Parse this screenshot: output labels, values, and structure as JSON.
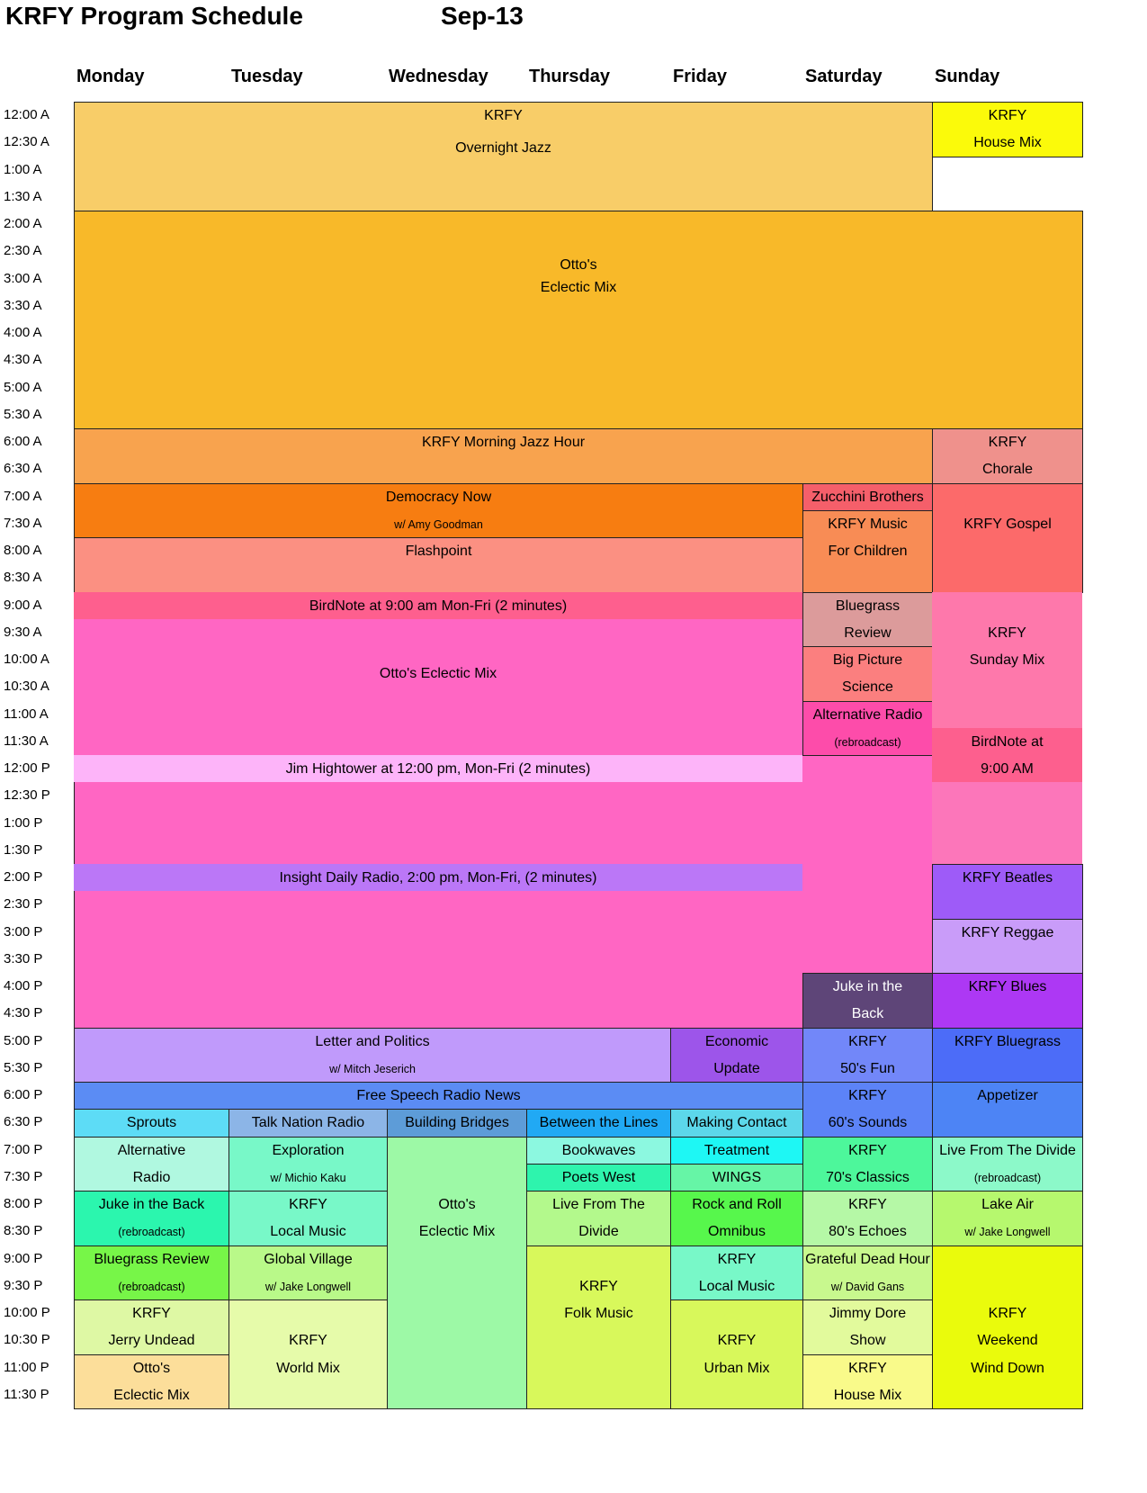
{
  "header": {
    "title": "KRFY Program Schedule",
    "month": "Sep-13"
  },
  "days": [
    "Monday",
    "Tuesday",
    "Wednesday",
    "Thursday",
    "Friday",
    "Saturday",
    "Sunday"
  ],
  "times": [
    "12:00 A",
    "12:30 A",
    "1:00 A",
    "1:30 A",
    "2:00 A",
    "2:30 A",
    "3:00 A",
    "3:30 A",
    "4:00 A",
    "4:30 A",
    "5:00 A",
    "5:30 A",
    "6:00 A",
    "6:30 A",
    "7:00 A",
    "7:30 A",
    "8:00 A",
    "8:30 A",
    "9:00 A",
    "9:30 A",
    "10:00 A",
    "10:30 A",
    "11:00 A",
    "11:30 A",
    "12:00 P",
    "12:30 P",
    "1:00 P",
    "1:30 P",
    "2:00 P",
    "2:30 P",
    "3:00 P",
    "3:30 P",
    "4:00 P",
    "4:30 P",
    "5:00 P",
    "5:30 P",
    "6:00 P",
    "6:30 P",
    "7:00 P",
    "7:30 P",
    "8:00 P",
    "8:30 P",
    "9:00 P",
    "9:30 P",
    "10:00 P",
    "10:30 P",
    "11:00 P",
    "11:30 P"
  ],
  "programs": [
    {
      "lines": [
        [
          "KRFY",
          0
        ],
        [
          "Overnight Jazz",
          1.2
        ]
      ],
      "color": "#f8cd68"
    },
    {
      "lines": [
        [
          "Otto's",
          1.5
        ],
        [
          "Eclectic Mix",
          2.3
        ]
      ],
      "color": "#f8b929"
    },
    {
      "lines": [
        [
          "KRFY Morning Jazz Hour",
          0
        ]
      ],
      "color": "#f8a34e"
    },
    {
      "lines": [
        [
          "Democracy Now",
          0
        ],
        [
          "w/ Amy Goodman",
          1,
          "sm"
        ]
      ],
      "color": "#f77d11"
    },
    {
      "lines": [
        [
          "Flashpoint",
          0
        ]
      ],
      "color": "#fb9082"
    },
    {
      "lines": [
        [
          "Otto's Eclectic Mix",
          1.5
        ]
      ],
      "color": "#ff66c3"
    },
    {
      "lines": [
        [
          "BirdNote at 9:00 am Mon-Fri (2 minutes)",
          0
        ]
      ],
      "color": "#fe5f8e"
    },
    {
      "lines": [
        [
          "Jim Hightower at 12:00 pm, Mon-Fri (2 minutes)",
          0
        ]
      ],
      "color": "#fdb4f9"
    },
    {
      "lines": [
        [
          "Insight Daily Radio, 2:00 pm, Mon-Fri, (2 minutes)",
          0
        ]
      ],
      "color": "#bb77f7"
    },
    {
      "lines": [
        [
          "Letter and Politics",
          0
        ],
        [
          "w/ Mitch Jeserich",
          1,
          "sm"
        ]
      ],
      "color": "#c09afb"
    },
    {
      "lines": [
        [
          "Economic",
          0
        ],
        [
          "Update",
          1
        ]
      ],
      "color": "#9d55ea"
    },
    {
      "lines": [
        [
          "Free Speech Radio News",
          0
        ]
      ],
      "color": "#5b8cf4"
    },
    {
      "lines": [
        [
          "Sprouts",
          0
        ]
      ],
      "color": "#5ddcf6"
    },
    {
      "lines": [
        [
          "Talk Nation Radio",
          0
        ]
      ],
      "color": "#8cb5e7"
    },
    {
      "lines": [
        [
          "Building Bridges",
          0
        ]
      ],
      "color": "#5d9cd8"
    },
    {
      "lines": [
        [
          "Between the Lines",
          0
        ]
      ],
      "color": "#21a9f4"
    },
    {
      "lines": [
        [
          "Making Contact",
          0
        ]
      ],
      "color": "#5cd7ea"
    },
    {
      "lines": [
        [
          "Alternative",
          0
        ],
        [
          "Radio",
          1
        ]
      ],
      "color": "#b0f8e0"
    },
    {
      "lines": [
        [
          "Exploration",
          0
        ],
        [
          "w/ Michio Kaku",
          1,
          "sm"
        ]
      ],
      "color": "#78f8c8"
    },
    {
      "lines": [
        [
          "Otto's",
          2
        ],
        [
          "Eclectic Mix",
          3
        ]
      ],
      "color": "#9df9a6"
    },
    {
      "lines": [
        [
          "Bookwaves",
          0
        ]
      ],
      "color": "#8cf8e0"
    },
    {
      "lines": [
        [
          "Treatment",
          0
        ]
      ],
      "color": "#1ef7f4"
    },
    {
      "lines": [
        [
          "Poets West",
          0
        ]
      ],
      "color": "#2ef4ad"
    },
    {
      "lines": [
        [
          "WINGS",
          0
        ]
      ],
      "color": "#66f5a6"
    },
    {
      "lines": [
        [
          "Juke in the Back",
          0
        ],
        [
          "(rebroadcast)",
          1,
          "sm"
        ]
      ],
      "color": "#2bf6ae"
    },
    {
      "lines": [
        [
          "KRFY",
          0
        ],
        [
          "Local Music",
          1
        ]
      ],
      "color": "#78f8c8"
    },
    {
      "lines": [
        [
          "Live From The",
          0
        ],
        [
          "Divide",
          1
        ]
      ],
      "color": "#b3f98c"
    },
    {
      "lines": [
        [
          "Rock and Roll",
          0
        ],
        [
          "Omnibus",
          1
        ]
      ],
      "color": "#57f74c"
    },
    {
      "lines": [
        [
          "Bluegrass Review",
          0
        ],
        [
          "(rebroadcast)",
          1,
          "sm"
        ]
      ],
      "color": "#77f648"
    },
    {
      "lines": [
        [
          "Global Village",
          0
        ],
        [
          "w/ Jake Longwell",
          1,
          "sm"
        ]
      ],
      "color": "#b9f989"
    },
    {
      "lines": [
        [
          "KRFY",
          1
        ],
        [
          "Folk Music",
          2
        ]
      ],
      "color": "#d8f85b"
    },
    {
      "lines": [
        [
          "KRFY",
          0
        ],
        [
          "Local Music",
          1
        ]
      ],
      "color": "#78f8c8"
    },
    {
      "lines": [
        [
          "KRFY",
          0
        ],
        [
          "Jerry Undead",
          1
        ]
      ],
      "color": "#def8a4"
    },
    {
      "lines": [
        [
          "KRFY",
          1
        ],
        [
          "World Mix",
          2
        ]
      ],
      "color": "#e6fbaa"
    },
    {
      "lines": [
        [
          "KRFY",
          1
        ],
        [
          "Urban Mix",
          2
        ]
      ],
      "color": "#d8f85b"
    },
    {
      "lines": [
        [
          "Otto's",
          0
        ],
        [
          "Eclectic Mix",
          1
        ]
      ],
      "color": "#fcde9a"
    },
    {
      "lines": [
        [
          "Zucchini Brothers",
          0
        ]
      ],
      "color": "#f55f6a"
    },
    {
      "lines": [
        [
          "KRFY Music",
          0
        ],
        [
          "For Children",
          1
        ]
      ],
      "color": "#f88c55"
    },
    {
      "lines": [
        [
          "Bluegrass",
          0
        ],
        [
          "Review",
          1
        ]
      ],
      "color": "#dc9b9b"
    },
    {
      "lines": [
        [
          "Big Picture",
          0
        ],
        [
          "Science",
          1
        ]
      ],
      "color": "#fb7f7f"
    },
    {
      "lines": [
        [
          "Alternative Radio",
          0
        ],
        [
          "(rebroadcast)",
          1,
          "sm"
        ]
      ],
      "color": "#fd4caa"
    },
    {
      "lines": [
        [
          "Juke in the",
          0
        ],
        [
          "Back",
          1
        ]
      ],
      "color": "#5e4578",
      "text": "#ffffff"
    },
    {
      "lines": [
        [
          "KRFY",
          0
        ],
        [
          "50's Fun",
          1
        ]
      ],
      "color": "#7287f9"
    },
    {
      "lines": [
        [
          "KRFY",
          0
        ],
        [
          "60's Sounds",
          1
        ]
      ],
      "color": "#5c83f7"
    },
    {
      "lines": [
        [
          "KRFY",
          0
        ],
        [
          "70's Classics",
          1
        ]
      ],
      "color": "#4df79b"
    },
    {
      "lines": [
        [
          "KRFY",
          0
        ],
        [
          "80's Echoes",
          1
        ]
      ],
      "color": "#b5f8a6"
    },
    {
      "lines": [
        [
          "Grateful Dead Hour",
          0
        ],
        [
          "w/ David Gans",
          1,
          "sm"
        ]
      ],
      "color": "#c8f88e"
    },
    {
      "lines": [
        [
          "Jimmy Dore",
          0
        ],
        [
          "Show",
          1
        ]
      ],
      "color": "#e2fa9c"
    },
    {
      "lines": [
        [
          "KRFY",
          0
        ],
        [
          "House Mix",
          1
        ]
      ],
      "color": "#f9fa8a"
    },
    {
      "lines": [
        [
          "KRFY",
          0
        ],
        [
          "House Mix",
          1
        ]
      ],
      "color": "#fbfa0a"
    },
    {
      "lines": [
        [
          "KRFY",
          0
        ],
        [
          "Chorale",
          1
        ]
      ],
      "color": "#ef918c"
    },
    {
      "lines": [
        [
          "KRFY Gospel",
          1
        ]
      ],
      "color": "#fc6a6a"
    },
    {
      "lines": [
        [
          "KRFY",
          1
        ],
        [
          "Sunday Mix",
          2
        ]
      ],
      "color": "#fe78ab"
    },
    {
      "lines": [
        [
          "BirdNote at",
          0
        ],
        [
          "9:00 AM",
          1
        ]
      ],
      "color": "#fd5f8e"
    },
    {
      "lines": [],
      "color": "#fc76ba"
    },
    {
      "lines": [
        [
          "KRFY  Beatles",
          0
        ]
      ],
      "color": "#9e5bf8"
    },
    {
      "lines": [
        [
          "KRFY Reggae",
          0
        ]
      ],
      "color": "#c99cf9"
    },
    {
      "lines": [
        [
          "KRFY Blues",
          0
        ]
      ],
      "color": "#ad38f4"
    },
    {
      "lines": [
        [
          "KRFY Bluegrass",
          0
        ]
      ],
      "color": "#4c6cf8"
    },
    {
      "lines": [
        [
          "Appetizer",
          0
        ]
      ],
      "color": "#4d84f5"
    },
    {
      "lines": [
        [
          "Live From The Divide",
          0
        ],
        [
          "(rebroadcast)",
          1,
          "sm"
        ]
      ],
      "color": "#8cf9c9"
    },
    {
      "lines": [
        [
          "Lake Air",
          0
        ],
        [
          "w/ Jake Longwell",
          1,
          "sm"
        ]
      ],
      "color": "#b6f86e"
    },
    {
      "lines": [
        [
          "KRFY",
          2
        ],
        [
          "Weekend",
          3
        ],
        [
          "Wind Down",
          4
        ]
      ],
      "color": "#eafb0c"
    }
  ]
}
